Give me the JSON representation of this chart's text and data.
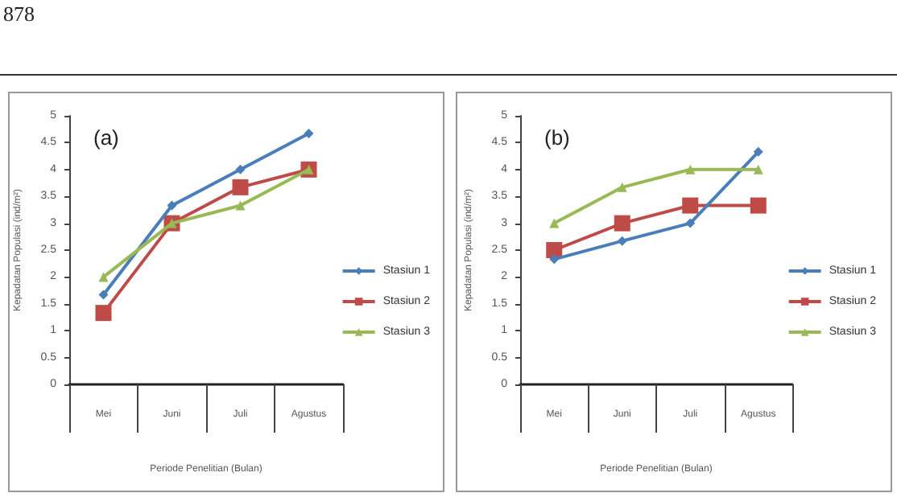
{
  "chart_data": [
    {
      "type": "line",
      "title": "(a)",
      "xlabel": "Periode Penelitian (Bulan)",
      "ylabel": "Kepadatan Populasi (ind/m²)",
      "annotations": [
        "878"
      ],
      "categories": [
        "Mei",
        "Juni",
        "Juli",
        "Agustus"
      ],
      "ylim": [
        0,
        5
      ],
      "yticks": [
        0,
        0.5,
        1,
        1.5,
        2,
        2.5,
        3,
        3.5,
        4,
        4.5,
        5
      ],
      "legend": "right",
      "series": [
        {
          "name": "Stasiun 1",
          "color": "#4a7ebb",
          "marker": "diamond",
          "values": [
            1.67,
            3.33,
            4.0,
            4.67
          ]
        },
        {
          "name": "Stasiun 2",
          "color": "#be4b48",
          "marker": "square",
          "values": [
            1.33,
            3.0,
            3.67,
            4.0
          ]
        },
        {
          "name": "Stasiun 3",
          "color": "#98b954",
          "marker": "triangle",
          "values": [
            2.0,
            3.0,
            3.33,
            4.0
          ]
        }
      ]
    },
    {
      "type": "line",
      "title": "(b)",
      "xlabel": "Periode Penelitian (Bulan)",
      "ylabel": "Kepadatan Populasi (ind/m²)",
      "categories": [
        "Mei",
        "Juni",
        "Juli",
        "Agustus"
      ],
      "ylim": [
        0,
        5
      ],
      "yticks": [
        0,
        0.5,
        1,
        1.5,
        2,
        2.5,
        3,
        3.5,
        4,
        4.5,
        5
      ],
      "legend": "right",
      "series": [
        {
          "name": "Stasiun 1",
          "color": "#4a7ebb",
          "marker": "diamond",
          "values": [
            2.33,
            2.67,
            3.0,
            4.33
          ]
        },
        {
          "name": "Stasiun 2",
          "color": "#be4b48",
          "marker": "square",
          "values": [
            2.5,
            3.0,
            3.33,
            3.33
          ]
        },
        {
          "name": "Stasiun 3",
          "color": "#98b954",
          "marker": "triangle",
          "values": [
            3.0,
            3.67,
            4.0,
            4.0
          ]
        }
      ]
    }
  ]
}
